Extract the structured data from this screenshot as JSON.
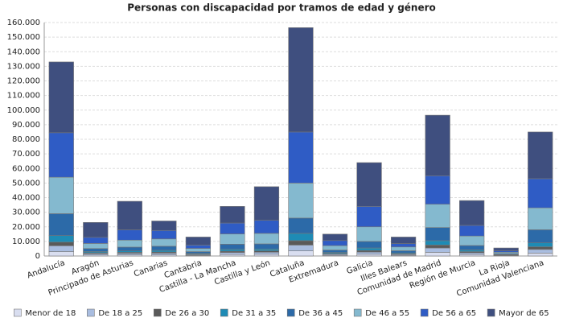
{
  "chart_data": {
    "type": "stacked_bar",
    "title": "Personas con discapacidad por tramos de edad y género",
    "categories": [
      "Andalucía",
      "Aragón",
      "Principado de Asturias",
      "Canarias",
      "Cantabria",
      "Castilla - La Mancha",
      "Castilla y León",
      "Cataluña",
      "Extremadura",
      "Galicia",
      "Illes Balears",
      "Comunidad de Madrid",
      "Región de Murcia",
      "La Rioja",
      "Comunidad Valenciana"
    ],
    "series": [
      {
        "name": "Menor de 18",
        "color": "#d9def0",
        "values": [
          3000,
          700,
          800,
          800,
          400,
          1100,
          1200,
          3500,
          500,
          1200,
          500,
          2500,
          1000,
          200,
          2000
        ]
      },
      {
        "name": "De 18 a 25",
        "color": "#a9bde0",
        "values": [
          4000,
          900,
          1000,
          1100,
          500,
          1300,
          1400,
          4000,
          700,
          1500,
          600,
          3000,
          1200,
          300,
          2500
        ]
      },
      {
        "name": "De 26 a 30",
        "color": "#5a5a5a",
        "values": [
          2500,
          600,
          700,
          800,
          400,
          900,
          900,
          3000,
          500,
          1100,
          400,
          2000,
          800,
          200,
          1800
        ]
      },
      {
        "name": "De 31 a 35",
        "color": "#1e8bb5",
        "values": [
          4500,
          900,
          1000,
          1200,
          500,
          1300,
          1300,
          5000,
          700,
          1700,
          600,
          3000,
          1200,
          300,
          2700
        ]
      },
      {
        "name": "De 36 a 45",
        "color": "#2c6aa8",
        "values": [
          15000,
          2000,
          2600,
          2800,
          1200,
          3500,
          3500,
          10500,
          1700,
          4500,
          1500,
          9000,
          3000,
          600,
          9000
        ]
      },
      {
        "name": "De 46 a 55",
        "color": "#84b9cf",
        "values": [
          25000,
          3500,
          4800,
          5000,
          2200,
          7000,
          7200,
          24000,
          3000,
          10000,
          2600,
          16000,
          6500,
          1000,
          15000
        ]
      },
      {
        "name": "De 56 a 65",
        "color": "#2f5cc5",
        "values": [
          30500,
          4200,
          7000,
          5800,
          2300,
          7500,
          9000,
          35000,
          3500,
          14000,
          2300,
          19500,
          7300,
          1000,
          20000
        ]
      },
      {
        "name": "Mayor de 65",
        "color": "#3f4f7f",
        "values": [
          48500,
          10200,
          19600,
          6500,
          5500,
          11400,
          23000,
          71500,
          4400,
          30000,
          4500,
          41500,
          17000,
          1900,
          32000
        ]
      }
    ],
    "ylim": [
      0,
      160000
    ],
    "yticks": [
      0,
      {
        "value": 10000,
        "label": "10.000"
      },
      {
        "value": 20000,
        "label": "20.000"
      },
      {
        "value": 30000,
        "label": "30.000"
      },
      {
        "value": 40000,
        "label": "40.000"
      },
      {
        "value": 50000,
        "label": "50.000"
      },
      {
        "value": 60000,
        "label": "60.000"
      },
      {
        "value": 70000,
        "label": "70.000"
      },
      {
        "value": 80000,
        "label": "80.000"
      },
      {
        "value": 90000,
        "label": "90.000"
      },
      {
        "value": 100000,
        "label": "100.000"
      },
      {
        "value": 110000,
        "label": "110.000"
      },
      {
        "value": 120000,
        "label": "120.000"
      },
      {
        "value": 130000,
        "label": "130.000"
      },
      {
        "value": 140000,
        "label": "140.000"
      },
      {
        "value": 150000,
        "label": "150.000"
      },
      {
        "value": 160000,
        "label": "160.000"
      }
    ],
    "grid": true
  }
}
